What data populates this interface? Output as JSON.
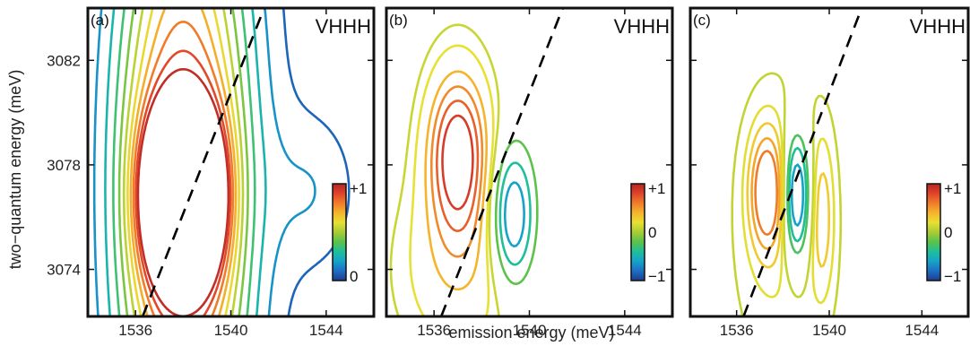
{
  "chart_data": {
    "type": "contour",
    "xlabel": "emission energy (meV)",
    "ylabel": "two−quantum energy (meV)",
    "x_range": [
      1534,
      1546
    ],
    "y_range": [
      3072.2,
      3084
    ],
    "x_ticks": [
      1536,
      1540,
      1544
    ],
    "x_tick_labels": [
      "1536",
      "1540",
      "1544"
    ],
    "y_ticks": [
      3074,
      3078,
      3082
    ],
    "y_tick_labels": [
      "3074",
      "3078",
      "3082"
    ],
    "diagonal_line": {
      "style": "dashed",
      "color": "#000000",
      "points": [
        [
          1536.3,
          3072.2
        ],
        [
          1541.4,
          3084
        ]
      ]
    },
    "colormap": [
      "#1e3c8c",
      "#1d6fc4",
      "#16a3c9",
      "#1fbf9a",
      "#5cc24a",
      "#a8cc35",
      "#e8e033",
      "#f5b42c",
      "#f07c2a",
      "#e0432a",
      "#b52525"
    ],
    "panels": [
      {
        "label": "(a)",
        "polarization": "VHHH",
        "colorbar": {
          "ticks": [
            "+1",
            "0"
          ],
          "range": [
            0,
            1
          ]
        },
        "peaks": [
          {
            "x": 1537.2,
            "y": 3076.8,
            "amp": 1.0,
            "sx": 1.05,
            "sy": 3.0
          },
          {
            "x": 1538.8,
            "y": 3076.8,
            "amp": 1.0,
            "sx": 1.05,
            "sy": 3.0
          },
          {
            "x": 1538.0,
            "y": 3077.2,
            "amp": 1.0,
            "sx": 2.8,
            "sy": 13.0
          },
          {
            "x": 1543.5,
            "y": 3077.0,
            "amp": 0.15,
            "sx": 1.8,
            "sy": 3.0
          }
        ],
        "levels": [
          0.08,
          0.17,
          0.26,
          0.35,
          0.44,
          0.53,
          0.62,
          0.71,
          0.8,
          0.89,
          0.97
        ]
      },
      {
        "label": "(b)",
        "polarization": "VHHH",
        "colorbar": {
          "ticks": [
            "+1",
            "0",
            "−1"
          ],
          "range": [
            -1,
            1
          ]
        },
        "peaks": [
          {
            "x": 1537.0,
            "y": 3078.5,
            "amp": 1.0,
            "sx": 1.3,
            "sy": 3.2
          },
          {
            "x": 1539.3,
            "y": 3076.0,
            "amp": -0.9,
            "sx": 0.9,
            "sy": 2.6
          },
          {
            "x": 1537.0,
            "y": 3074.0,
            "amp": 0.35,
            "sx": 2.5,
            "sy": 3.5
          }
        ],
        "levels": [
          -0.8,
          -0.6,
          -0.4,
          -0.2,
          0.1,
          0.2,
          0.4,
          0.55,
          0.7,
          0.85
        ]
      },
      {
        "label": "(c)",
        "polarization": "VHHH",
        "colorbar": {
          "ticks": [
            "+1",
            "0",
            "−1"
          ],
          "range": [
            -1,
            1
          ]
        },
        "peaks": [
          {
            "x": 1537.3,
            "y": 3077.0,
            "amp": 0.75,
            "sx": 0.7,
            "sy": 2.2
          },
          {
            "x": 1538.6,
            "y": 3076.8,
            "amp": -1.0,
            "sx": 0.55,
            "sy": 2.4
          },
          {
            "x": 1538.0,
            "y": 3075.5,
            "amp": 0.2,
            "sx": 2.2,
            "sy": 6.0
          },
          {
            "x": 1539.7,
            "y": 3076.0,
            "amp": 0.3,
            "sx": 0.5,
            "sy": 3.0
          }
        ],
        "levels": [
          -0.8,
          -0.6,
          -0.4,
          -0.25,
          0.08,
          0.18,
          0.3,
          0.45,
          0.6
        ]
      }
    ]
  }
}
